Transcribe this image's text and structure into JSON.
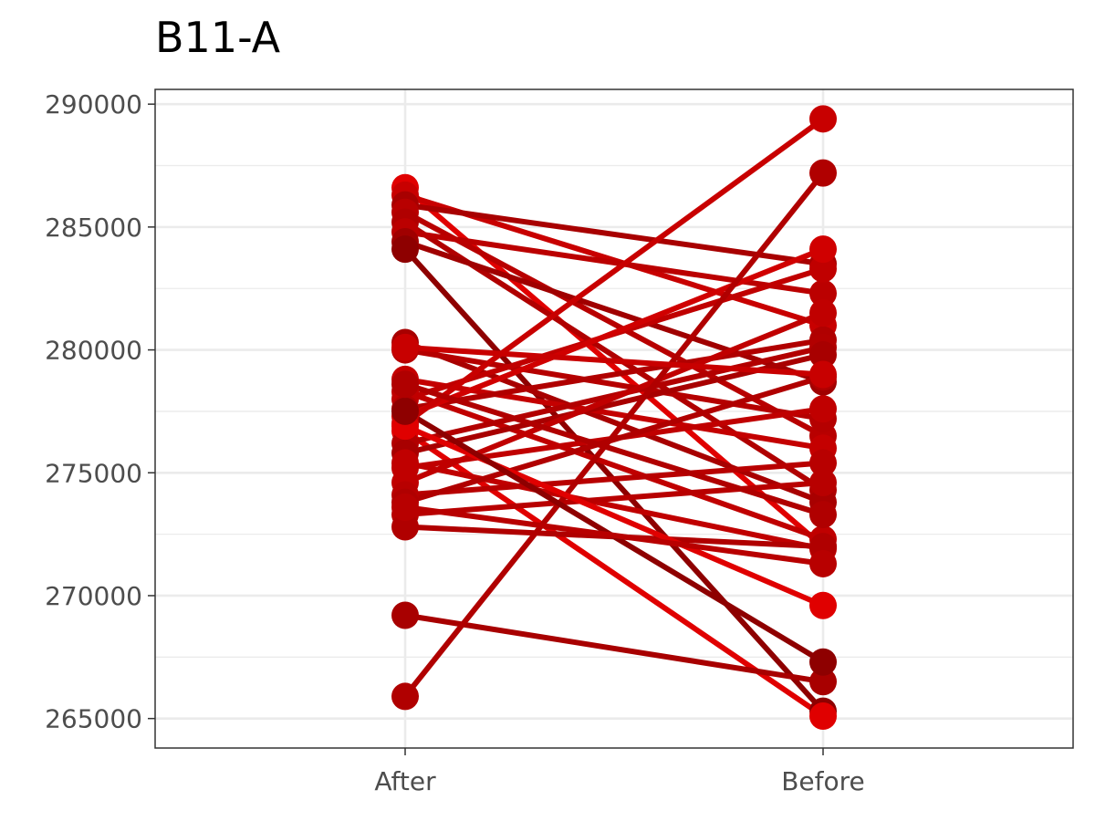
{
  "chart_data": {
    "type": "line",
    "title": "B11-A",
    "xlabel": "",
    "ylabel": "",
    "categories": [
      "After",
      "Before"
    ],
    "ylim": [
      263800,
      290600
    ],
    "yticks": [
      265000,
      270000,
      275000,
      280000,
      285000,
      290000
    ],
    "ytick_labels": [
      "265000",
      "270000",
      "275000",
      "280000",
      "285000",
      "290000"
    ],
    "grid": true,
    "legend": "none",
    "series": [
      {
        "values": [
          286600,
          272000
        ],
        "color": "#e00000"
      },
      {
        "values": [
          286300,
          281000
        ],
        "color": "#c80000"
      },
      {
        "values": [
          285900,
          283500
        ],
        "color": "#a80000"
      },
      {
        "values": [
          285600,
          276500
        ],
        "color": "#b80000"
      },
      {
        "values": [
          285200,
          274300
        ],
        "color": "#b00000"
      },
      {
        "values": [
          284800,
          282300
        ],
        "color": "#bb0000"
      },
      {
        "values": [
          284400,
          278700
        ],
        "color": "#a00000"
      },
      {
        "values": [
          284100,
          265300
        ],
        "color": "#8e0000"
      },
      {
        "values": [
          280300,
          273800
        ],
        "color": "#a80000"
      },
      {
        "values": [
          280000,
          277200
        ],
        "color": "#b50000"
      },
      {
        "values": [
          278800,
          276000
        ],
        "color": "#c40000"
      },
      {
        "values": [
          278300,
          272300
        ],
        "color": "#c00000"
      },
      {
        "values": [
          278000,
          283300
        ],
        "color": "#c00000"
      },
      {
        "values": [
          277600,
          280400
        ],
        "color": "#b00000"
      },
      {
        "values": [
          277300,
          284100
        ],
        "color": "#d00000"
      },
      {
        "values": [
          277000,
          289400
        ],
        "color": "#c80000"
      },
      {
        "values": [
          276700,
          265100
        ],
        "color": "#e00000"
      },
      {
        "values": [
          276200,
          280100
        ],
        "color": "#b20000"
      },
      {
        "values": [
          275800,
          279800
        ],
        "color": "#a80000"
      },
      {
        "values": [
          275400,
          271900
        ],
        "color": "#c00000"
      },
      {
        "values": [
          275200,
          277600
        ],
        "color": "#c00000"
      },
      {
        "values": [
          274600,
          281500
        ],
        "color": "#c00000"
      },
      {
        "values": [
          274100,
          275400
        ],
        "color": "#b80000"
      },
      {
        "values": [
          273800,
          278900
        ],
        "color": "#b00000"
      },
      {
        "values": [
          273300,
          274600
        ],
        "color": "#b80000"
      },
      {
        "values": [
          272800,
          272000
        ],
        "color": "#b00000"
      },
      {
        "values": [
          269200,
          266500
        ],
        "color": "#a80000"
      },
      {
        "values": [
          265900,
          287200
        ],
        "color": "#b00000"
      },
      {
        "values": [
          276900,
          269600
        ],
        "color": "#e00000"
      },
      {
        "values": [
          277500,
          267300
        ],
        "color": "#8e0000"
      },
      {
        "values": [
          273600,
          271300
        ],
        "color": "#b80000"
      },
      {
        "values": [
          280100,
          279000
        ],
        "color": "#c80000"
      },
      {
        "values": [
          278600,
          273300
        ],
        "color": "#b00000"
      }
    ]
  }
}
